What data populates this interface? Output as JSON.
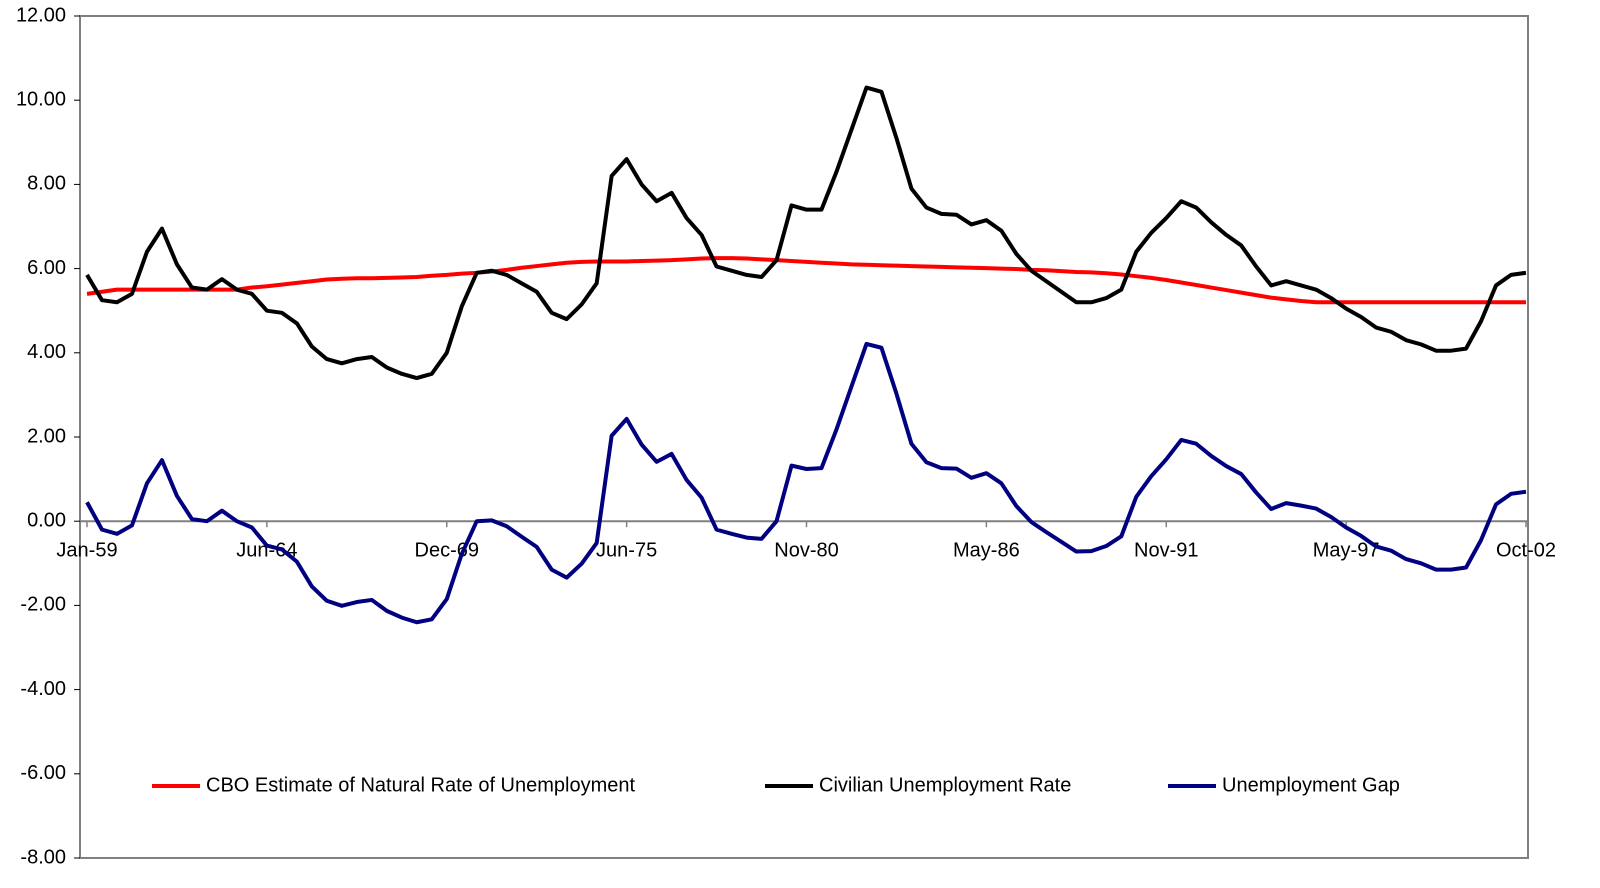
{
  "chart_data": {
    "type": "line",
    "categories": [
      "Jan-59",
      null,
      null,
      null,
      null,
      null,
      null,
      null,
      null,
      null,
      null,
      null,
      "Jun-64",
      null,
      null,
      null,
      null,
      null,
      null,
      null,
      null,
      null,
      null,
      null,
      "Dec-69",
      null,
      null,
      null,
      null,
      null,
      null,
      null,
      null,
      null,
      null,
      null,
      "Jun-75",
      null,
      null,
      null,
      null,
      null,
      null,
      null,
      null,
      null,
      null,
      null,
      "Nov-80",
      null,
      null,
      null,
      null,
      null,
      null,
      null,
      null,
      null,
      null,
      null,
      "May-86",
      null,
      null,
      null,
      null,
      null,
      null,
      null,
      null,
      null,
      null,
      null,
      "Nov-91",
      null,
      null,
      null,
      null,
      null,
      null,
      null,
      null,
      null,
      null,
      null,
      "May-97",
      null,
      null,
      null,
      null,
      null,
      null,
      null,
      null,
      null,
      null,
      null,
      "Oct-02"
    ],
    "series": [
      {
        "name": "CBO Estimate of Natural Rate of Unemployment",
        "color": "#ff0000",
        "values": [
          5.4,
          5.45,
          5.5,
          5.5,
          5.5,
          5.5,
          5.5,
          5.5,
          5.5,
          5.5,
          5.5,
          5.55,
          5.58,
          5.62,
          5.66,
          5.7,
          5.74,
          5.76,
          5.77,
          5.77,
          5.78,
          5.79,
          5.8,
          5.83,
          5.85,
          5.88,
          5.9,
          5.93,
          5.97,
          6.02,
          6.06,
          6.1,
          6.14,
          6.16,
          6.17,
          6.17,
          6.17,
          6.18,
          6.19,
          6.2,
          6.22,
          6.24,
          6.25,
          6.25,
          6.24,
          6.22,
          6.2,
          6.18,
          6.16,
          6.14,
          6.12,
          6.1,
          6.09,
          6.08,
          6.07,
          6.06,
          6.05,
          6.04,
          6.03,
          6.02,
          6.01,
          6.0,
          5.99,
          5.97,
          5.96,
          5.94,
          5.92,
          5.91,
          5.89,
          5.86,
          5.82,
          5.78,
          5.73,
          5.67,
          5.61,
          5.55,
          5.49,
          5.43,
          5.37,
          5.31,
          5.27,
          5.23,
          5.2,
          5.2,
          5.2,
          5.2,
          5.2,
          5.2,
          5.2,
          5.2,
          5.2,
          5.2,
          5.2,
          5.2,
          5.2,
          5.2,
          5.2
        ]
      },
      {
        "name": "Civilian Unemployment Rate",
        "color": "#000000",
        "values": [
          5.85,
          5.25,
          5.2,
          5.4,
          6.4,
          6.95,
          6.1,
          5.55,
          5.5,
          5.75,
          5.5,
          5.4,
          5.0,
          4.95,
          4.7,
          4.15,
          3.85,
          3.75,
          3.85,
          3.9,
          3.65,
          3.5,
          3.4,
          3.5,
          4.0,
          5.1,
          5.9,
          5.95,
          5.85,
          5.65,
          5.45,
          4.95,
          4.8,
          5.15,
          5.65,
          8.2,
          8.6,
          8.0,
          7.6,
          7.8,
          7.2,
          6.8,
          6.05,
          5.95,
          5.85,
          5.8,
          6.2,
          7.5,
          7.4,
          7.4,
          8.3,
          9.3,
          10.3,
          10.2,
          9.1,
          7.9,
          7.45,
          7.3,
          7.28,
          7.05,
          7.15,
          6.9,
          6.35,
          5.95,
          5.7,
          5.45,
          5.2,
          5.2,
          5.3,
          5.5,
          6.4,
          6.85,
          7.2,
          7.6,
          7.45,
          7.1,
          6.8,
          6.55,
          6.05,
          5.6,
          5.7,
          5.6,
          5.5,
          5.3,
          5.05,
          4.85,
          4.6,
          4.5,
          4.3,
          4.2,
          4.05,
          4.05,
          4.1,
          4.75,
          5.6,
          5.85,
          5.9
        ]
      },
      {
        "name": "Unemployment Gap",
        "color": "#000080",
        "values": [
          0.45,
          -0.2,
          -0.3,
          -0.1,
          0.9,
          1.45,
          0.6,
          0.05,
          0.0,
          0.25,
          0.0,
          -0.15,
          -0.58,
          -0.67,
          -0.96,
          -1.55,
          -1.89,
          -2.01,
          -1.92,
          -1.87,
          -2.13,
          -2.29,
          -2.4,
          -2.33,
          -1.85,
          -0.78,
          0.0,
          0.02,
          -0.12,
          -0.37,
          -0.61,
          -1.15,
          -1.34,
          -1.01,
          -0.52,
          2.03,
          2.43,
          1.82,
          1.41,
          1.6,
          0.98,
          0.56,
          -0.2,
          -0.3,
          -0.39,
          -0.42,
          0.0,
          1.32,
          1.24,
          1.26,
          2.18,
          3.2,
          4.21,
          4.12,
          3.03,
          1.84,
          1.4,
          1.26,
          1.25,
          1.03,
          1.14,
          0.9,
          0.36,
          -0.02,
          -0.26,
          -0.49,
          -0.72,
          -0.71,
          -0.59,
          -0.36,
          0.58,
          1.07,
          1.47,
          1.93,
          1.84,
          1.55,
          1.31,
          1.12,
          0.68,
          0.29,
          0.43,
          0.37,
          0.3,
          0.1,
          -0.15,
          -0.35,
          -0.6,
          -0.7,
          -0.9,
          -1.0,
          -1.15,
          -1.15,
          -1.1,
          -0.45,
          0.4,
          0.65,
          0.7
        ]
      }
    ],
    "ylim": [
      -8,
      12
    ],
    "yticks": [
      {
        "value": -8,
        "label": "-8.00"
      },
      {
        "value": -6,
        "label": "-6.00"
      },
      {
        "value": -4,
        "label": "-4.00"
      },
      {
        "value": -2,
        "label": "-2.00"
      },
      {
        "value": 0,
        "label": "0.00"
      },
      {
        "value": 2,
        "label": "2.00"
      },
      {
        "value": 4,
        "label": "4.00"
      },
      {
        "value": 6,
        "label": "6.00"
      },
      {
        "value": 8,
        "label": "8.00"
      },
      {
        "value": 10,
        "label": "10.00"
      },
      {
        "value": 12,
        "label": "12.00"
      }
    ],
    "legend": "bottom"
  }
}
